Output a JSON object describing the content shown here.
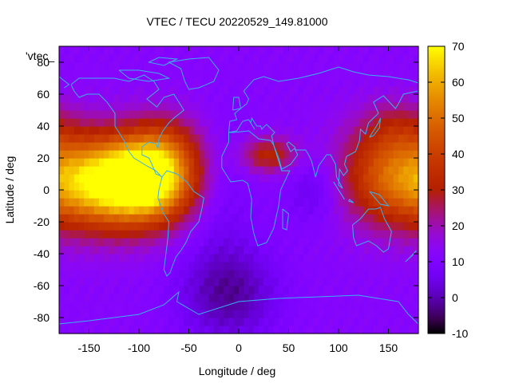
{
  "chart_data": {
    "type": "heatmap",
    "title": "VTEC / TECU 20220529_149.81000",
    "key_label": "'vtec_",
    "xlabel": "Longitude / deg",
    "ylabel": "Latitude / deg",
    "xlim": [
      -180,
      180
    ],
    "ylim": [
      -90,
      90
    ],
    "x_ticks": [
      -150,
      -100,
      -50,
      0,
      50,
      100,
      150
    ],
    "y_ticks": [
      -80,
      -60,
      -40,
      -20,
      0,
      20,
      40,
      60,
      80
    ],
    "colorbar": {
      "range": [
        -10,
        70
      ],
      "ticks": [
        -10,
        0,
        10,
        20,
        30,
        40,
        50,
        60,
        70
      ],
      "palette": "gnuplot-black-blue-purple-red-yellow"
    },
    "grid": false,
    "cell_deg": 5,
    "field_peaks": [
      {
        "lon": -130,
        "lat": 5,
        "value": 58,
        "sx": 45,
        "sy": 20
      },
      {
        "lon": -85,
        "lat": 8,
        "value": 42,
        "sx": 30,
        "sy": 18
      },
      {
        "lon": -70,
        "lat": 30,
        "value": 12,
        "sx": 25,
        "sy": 15
      },
      {
        "lon": 30,
        "lat": 22,
        "value": 22,
        "sx": 20,
        "sy": 8
      },
      {
        "lon": 150,
        "lat": 10,
        "value": 30,
        "sx": 35,
        "sy": 22
      },
      {
        "lon": 160,
        "lat": 40,
        "value": 10,
        "sx": 25,
        "sy": 12
      },
      {
        "lon": -10,
        "lat": -65,
        "value": -12,
        "sx": 35,
        "sy": 22
      },
      {
        "lon": 75,
        "lat": 0,
        "value": -6,
        "sx": 20,
        "sy": 15
      },
      {
        "lon": -20,
        "lat": 0,
        "value": -4,
        "sx": 25,
        "sy": 30
      }
    ],
    "baseline": 12
  },
  "colors": {
    "coastline": "#3ab0f0",
    "axis": "#000000"
  }
}
